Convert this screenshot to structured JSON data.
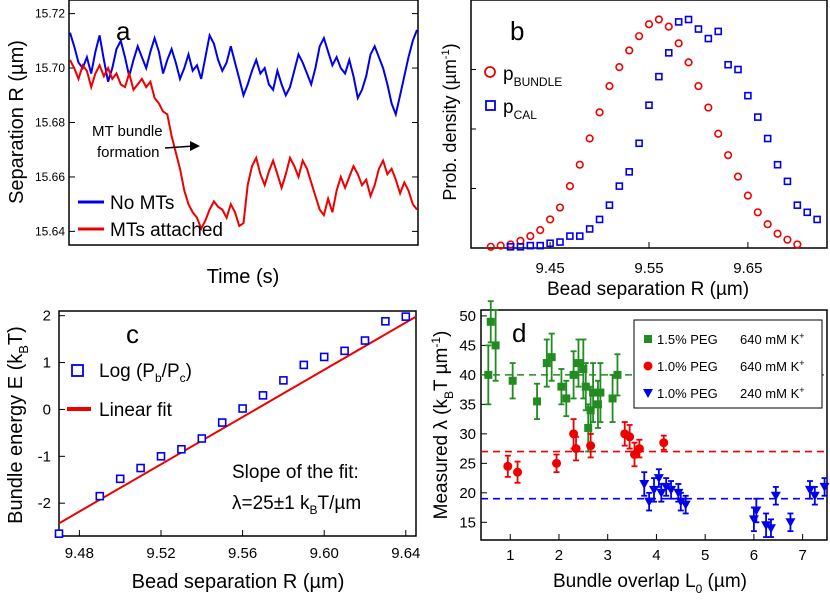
{
  "chart_data": [
    {
      "panel": "a",
      "type": "line",
      "xlabel": "Time (s)",
      "ylabel": "Separation R (µm)",
      "ylim": [
        15.635,
        15.725
      ],
      "yticks": [
        "15.64",
        "15.66",
        "15.68",
        "15.70",
        "15.72"
      ],
      "series": [
        {
          "name": "No MTs",
          "color": "#0000ee",
          "values": [
            15.713,
            15.708,
            15.702,
            15.7,
            15.704,
            15.698,
            15.706,
            15.712,
            15.703,
            15.695,
            15.7,
            15.707,
            15.71,
            15.704,
            15.697,
            15.703,
            15.708,
            15.704,
            15.7,
            15.706,
            15.711,
            15.706,
            15.698,
            15.703,
            15.707,
            15.702,
            15.696,
            15.7,
            15.705,
            15.699,
            15.701,
            15.696,
            15.704,
            15.712,
            15.709,
            15.703,
            15.699,
            15.702,
            15.708,
            15.702,
            15.696,
            15.69,
            15.694,
            15.699,
            15.703,
            15.698,
            15.7,
            15.694,
            15.692,
            15.699,
            15.694,
            15.69,
            15.693,
            15.699,
            15.705,
            15.702,
            15.698,
            15.694,
            15.7,
            15.708,
            15.711,
            15.706,
            15.701,
            15.704,
            15.7,
            15.698,
            15.703,
            15.697,
            15.689,
            15.692,
            15.697,
            15.705,
            15.708,
            15.704,
            15.7,
            15.694,
            15.687,
            15.683,
            15.69,
            15.697,
            15.704,
            15.71,
            15.714
          ]
        },
        {
          "name": "MTs attached",
          "color": "#ee0000",
          "values": [
            15.703,
            15.7,
            15.696,
            15.701,
            15.699,
            15.693,
            15.698,
            15.701,
            15.697,
            15.7,
            15.696,
            15.698,
            15.694,
            15.693,
            15.698,
            15.692,
            15.694,
            15.696,
            15.693,
            15.695,
            15.689,
            15.687,
            15.684,
            15.683,
            15.675,
            15.669,
            15.663,
            15.655,
            15.65,
            15.647,
            15.645,
            15.641,
            15.644,
            15.648,
            15.651,
            15.649,
            15.648,
            15.645,
            15.65,
            15.647,
            15.642,
            15.643,
            15.657,
            15.664,
            15.667,
            15.661,
            15.657,
            15.662,
            15.666,
            15.661,
            15.656,
            15.661,
            15.667,
            15.664,
            15.66,
            15.666,
            15.663,
            15.658,
            15.653,
            15.648,
            15.646,
            15.652,
            15.647,
            15.655,
            15.66,
            15.656,
            15.66,
            15.664,
            15.661,
            15.657,
            15.659,
            15.653,
            15.657,
            15.663,
            15.666,
            15.661,
            15.663,
            15.659,
            15.654,
            15.658,
            15.655,
            15.65,
            15.648
          ]
        }
      ],
      "annotation": {
        "line1": "MT bundle",
        "line2": "formation",
        "x_index": 27,
        "y": 15.669
      }
    },
    {
      "panel": "b",
      "type": "scatter",
      "xlabel": "Bead separation R (µm)",
      "ylabel": "Prob. density (µm",
      "ylabel_sup": "-1",
      "ylabel_end": ")",
      "xlim": [
        9.37,
        9.73
      ],
      "xticks": [
        "9.45",
        "9.55",
        "9.65"
      ],
      "series": [
        {
          "name": "p",
          "sub": "BUNDLE",
          "color": "#ee0000",
          "marker": "circle",
          "x": [
            9.39,
            9.4,
            9.41,
            9.42,
            9.43,
            9.44,
            9.45,
            9.46,
            9.47,
            9.48,
            9.49,
            9.5,
            9.51,
            9.52,
            9.53,
            9.54,
            9.55,
            9.56,
            9.57,
            9.58,
            9.59,
            9.6,
            9.61,
            9.62,
            9.63,
            9.64,
            9.65,
            9.66,
            9.67,
            9.68,
            9.69,
            9.7
          ],
          "y": [
            0.005,
            0.01,
            0.015,
            0.03,
            0.05,
            0.075,
            0.12,
            0.17,
            0.26,
            0.35,
            0.46,
            0.57,
            0.68,
            0.76,
            0.83,
            0.89,
            0.94,
            0.96,
            0.93,
            0.86,
            0.78,
            0.68,
            0.59,
            0.48,
            0.39,
            0.3,
            0.22,
            0.15,
            0.1,
            0.06,
            0.035,
            0.015
          ]
        },
        {
          "name": "p",
          "sub": "CAL",
          "color": "#0000ee",
          "marker": "square",
          "x": [
            9.41,
            9.42,
            9.43,
            9.44,
            9.45,
            9.46,
            9.47,
            9.48,
            9.49,
            9.5,
            9.51,
            9.52,
            9.53,
            9.54,
            9.55,
            9.56,
            9.57,
            9.58,
            9.59,
            9.6,
            9.61,
            9.62,
            9.63,
            9.64,
            9.65,
            9.66,
            9.67,
            9.68,
            9.69,
            9.7,
            9.71,
            9.72
          ],
          "y": [
            0.005,
            0.005,
            0.01,
            0.01,
            0.02,
            0.025,
            0.05,
            0.05,
            0.08,
            0.12,
            0.18,
            0.26,
            0.32,
            0.44,
            0.6,
            0.72,
            0.82,
            0.95,
            0.96,
            0.92,
            0.88,
            0.91,
            0.77,
            0.75,
            0.64,
            0.55,
            0.46,
            0.35,
            0.28,
            0.18,
            0.15,
            0.12
          ]
        }
      ]
    },
    {
      "panel": "c",
      "type": "scatter",
      "xlabel": "Bead separation R (µm)",
      "ylabel": "Bundle energy E (k",
      "ylabel_sub": "B",
      "ylabel_end": "T)",
      "xlim": [
        9.47,
        9.645
      ],
      "ylim": [
        -2.7,
        2.1
      ],
      "xticks": [
        "9.48",
        "9.52",
        "9.56",
        "9.60",
        "9.64"
      ],
      "yticks": [
        "-2",
        "-1",
        "0",
        "1",
        "2"
      ],
      "points": {
        "name": "Log (P",
        "sub1": "b",
        "mid": "/P",
        "sub2": "c",
        "end": ")",
        "color": "#0000ee",
        "x": [
          9.47,
          9.49,
          9.5,
          9.51,
          9.52,
          9.53,
          9.54,
          9.55,
          9.56,
          9.57,
          9.58,
          9.59,
          9.6,
          9.61,
          9.62,
          9.63,
          9.64
        ],
        "y": [
          -2.65,
          -1.85,
          -1.48,
          -1.25,
          -1.0,
          -0.85,
          -0.62,
          -0.28,
          0.02,
          0.3,
          0.62,
          0.95,
          1.12,
          1.25,
          1.47,
          1.88,
          1.98
        ]
      },
      "fit": {
        "name": "Linear fit",
        "color": "#ee0000",
        "x": [
          9.47,
          9.645
        ],
        "y": [
          -2.43,
          1.98
        ]
      },
      "note_line1": "Slope of the fit:",
      "note_line2a": "λ=25±1 k",
      "note_sub": "B",
      "note_line2b": "T/µm"
    },
    {
      "panel": "d",
      "type": "scatter",
      "xlabel": "Bundle overlap L",
      "xlabel_sub": "0",
      "xlabel_end": " (µm)",
      "ylabel": "Measured λ (k",
      "ylabel_sub": "B",
      "ylabel_mid": "T µm",
      "ylabel_sup": "-1",
      "ylabel_end": ")",
      "xlim": [
        0.4,
        7.5
      ],
      "ylim": [
        12,
        51
      ],
      "xticks": [
        "1",
        "2",
        "3",
        "4",
        "5",
        "6",
        "7"
      ],
      "yticks": [
        "15",
        "20",
        "25",
        "30",
        "35",
        "40",
        "45",
        "50"
      ],
      "series": [
        {
          "name": "1.5% PEG",
          "salt": "640 mM K",
          "salt_sup": "+",
          "color": "#228b22",
          "marker": "square",
          "mean": 40,
          "x": [
            0.55,
            0.6,
            0.7,
            1.05,
            1.55,
            1.75,
            1.85,
            2.05,
            2.15,
            2.3,
            2.4,
            2.5,
            2.55,
            2.6,
            2.65,
            2.7,
            2.8,
            2.85,
            3.1,
            3.2
          ],
          "y": [
            40,
            49,
            45,
            39,
            35.5,
            42,
            43,
            38,
            36,
            40,
            42,
            41,
            38,
            31,
            34,
            37,
            35,
            37,
            36,
            40
          ],
          "err": [
            5,
            3.5,
            6,
            3,
            3,
            4,
            4,
            3,
            3,
            4,
            4,
            5,
            4,
            4,
            4,
            5,
            4,
            5,
            4,
            3.5
          ]
        },
        {
          "name": "1.0% PEG",
          "salt": "640 mM K",
          "salt_sup": "+",
          "color": "#ee0000",
          "marker": "circle",
          "mean": 27,
          "x": [
            0.95,
            1.15,
            1.95,
            2.3,
            2.35,
            2.65,
            3.35,
            3.45,
            3.55,
            3.65,
            4.15
          ],
          "y": [
            24.5,
            23.5,
            25,
            30,
            27.5,
            28,
            30,
            29.5,
            26.5,
            27.5,
            28.5
          ],
          "err": [
            1.8,
            1.8,
            1.5,
            2.5,
            2,
            2,
            2,
            2,
            2,
            1.5,
            1.2
          ]
        },
        {
          "name": "1.0% PEG",
          "salt": "240 mM K",
          "salt_sup": "+",
          "color": "#0000ee",
          "marker": "triangle",
          "mean": 19,
          "x": [
            3.75,
            3.85,
            3.95,
            4.05,
            4.1,
            4.2,
            4.3,
            4.45,
            4.5,
            4.6,
            6.0,
            6.05,
            6.25,
            6.35,
            6.45,
            6.75,
            7.15,
            7.25,
            7.45
          ],
          "y": [
            21.5,
            18.5,
            20.5,
            22.5,
            20,
            21,
            20.5,
            20,
            18.5,
            18,
            15.5,
            17,
            14.5,
            14,
            19.5,
            15,
            20.5,
            19.5,
            21
          ],
          "err": [
            2,
            1.5,
            2,
            1.5,
            1.5,
            1.5,
            1.5,
            1.5,
            1.5,
            1.5,
            2,
            2,
            2,
            1.5,
            1.5,
            1.5,
            1.5,
            1.5,
            1.5
          ]
        }
      ]
    }
  ],
  "labels": {
    "a": "a",
    "b": "b",
    "c": "c",
    "d": "d"
  }
}
